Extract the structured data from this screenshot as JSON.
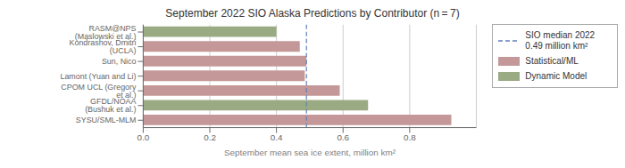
{
  "chart_data": {
    "type": "bar",
    "orientation": "horizontal",
    "title": "September 2022 SIO Alaska Predictions by Contributor (n = 7)",
    "xlabel": "September mean sea ice extent, million km²",
    "categories": [
      "RASM@NPS (Maslowski et al.)",
      "Kondrashov, Dmitri (UCLA)",
      "Sun, Nico",
      "Lamont (Yuan and Li)",
      "CPOM UCL (Gregory et al.)",
      "GFDL/NOAA (Bushuk et al.)",
      "SYSU/SML-MLM"
    ],
    "series": [
      {
        "name": "Statistical/ML",
        "color": "#c49898",
        "values": [
          null,
          0.47,
          0.49,
          0.485,
          0.59,
          null,
          0.925
        ]
      },
      {
        "name": "Dynamic Model",
        "color": "#9aaa82",
        "values": [
          0.4,
          null,
          null,
          null,
          null,
          0.675,
          null
        ]
      }
    ],
    "reference_lines": [
      {
        "value": 0.49,
        "label": "SIO median 2022\n0.49 million km²",
        "color": "#6080b8",
        "line_style": "dashed"
      }
    ],
    "xlim": [
      0.0,
      1.0
    ],
    "xticks": [
      {
        "value": 0,
        "label": "0.0"
      },
      0.2,
      0.4,
      0.6,
      0.8
    ],
    "grid": true,
    "legend": "right"
  }
}
